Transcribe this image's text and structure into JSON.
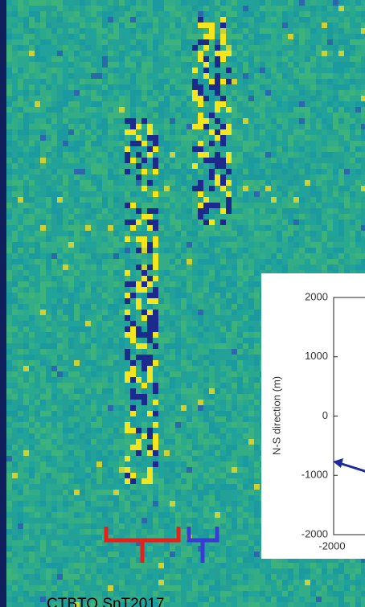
{
  "footer": "CTBTO SnT2017",
  "inset": {
    "ylabel": "N-S direction (m)",
    "ylim": [
      -2000,
      2000
    ],
    "yticks": [
      2000,
      1000,
      0,
      -1000,
      -2000
    ],
    "xticks": [
      -2000
    ]
  }
}
